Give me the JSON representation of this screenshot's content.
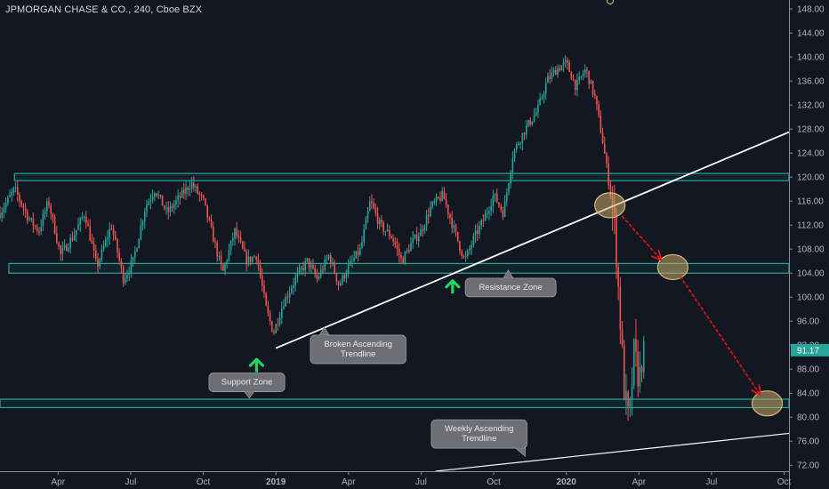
{
  "title": "JPMORGAN CHASE & CO., 240, Cboe BZX",
  "colors": {
    "background": "#131722",
    "up": "#26a69a",
    "down": "#ef5350",
    "zone_stroke": "#26a69a",
    "trendline": "#ffffff",
    "arrow_red": "#e8151b",
    "arrow_green": "#1ed760",
    "ellipse_fill": "#c9a968",
    "callout_fill": "#6d6f75",
    "price_tag": "#26a69a",
    "axis_text": "#b2b5be"
  },
  "chart_data": {
    "type": "candlestick",
    "title": "JPMORGAN CHASE & CO., 240, Cboe BZX",
    "y_axis": {
      "ticks": [
        "148.00",
        "144.00",
        "140.00",
        "136.00",
        "132.00",
        "128.00",
        "124.00",
        "120.00",
        "116.00",
        "112.00",
        "108.00",
        "104.00",
        "100.00",
        "96.00",
        "92.00",
        "88.00",
        "84.00",
        "80.00",
        "76.00",
        "72.00"
      ],
      "range": [
        71,
        149.5
      ]
    },
    "x_axis": {
      "ticks": [
        {
          "label": "Apr",
          "t": 3
        },
        {
          "label": "Jul",
          "t": 6
        },
        {
          "label": "Oct",
          "t": 9
        },
        {
          "label": "2019",
          "t": 12
        },
        {
          "label": "Apr",
          "t": 15
        },
        {
          "label": "Jul",
          "t": 18
        },
        {
          "label": "Oct",
          "t": 21
        },
        {
          "label": "2020",
          "t": 24
        },
        {
          "label": "Apr",
          "t": 27
        },
        {
          "label": "Jul",
          "t": 30
        },
        {
          "label": "Oct",
          "t": 33
        }
      ],
      "range": [
        0.6,
        33.2
      ]
    },
    "last_price": {
      "label": "91.17",
      "value": 91.17
    },
    "price_path": [
      [
        0.6,
        114
      ],
      [
        1.2,
        118
      ],
      [
        1.8,
        113
      ],
      [
        2.2,
        111
      ],
      [
        2.6,
        116
      ],
      [
        3.1,
        107
      ],
      [
        3.6,
        110
      ],
      [
        4.1,
        114
      ],
      [
        4.6,
        105
      ],
      [
        5.2,
        112
      ],
      [
        5.7,
        103
      ],
      [
        6.1,
        106
      ],
      [
        6.6,
        115
      ],
      [
        7.0,
        118
      ],
      [
        7.5,
        114
      ],
      [
        8.1,
        117
      ],
      [
        8.5,
        119
      ],
      [
        9.0,
        116
      ],
      [
        9.4,
        110
      ],
      [
        9.8,
        104
      ],
      [
        10.3,
        111
      ],
      [
        10.8,
        106
      ],
      [
        11.2,
        107
      ],
      [
        11.6,
        98
      ],
      [
        11.9,
        94
      ],
      [
        12.3,
        99
      ],
      [
        12.8,
        103
      ],
      [
        13.3,
        106
      ],
      [
        13.7,
        103
      ],
      [
        14.2,
        107
      ],
      [
        14.6,
        102
      ],
      [
        15.0,
        105
      ],
      [
        15.5,
        108
      ],
      [
        15.9,
        116
      ],
      [
        16.3,
        112
      ],
      [
        16.8,
        110
      ],
      [
        17.2,
        106
      ],
      [
        17.6,
        109
      ],
      [
        18.0,
        111
      ],
      [
        18.4,
        115
      ],
      [
        18.9,
        117
      ],
      [
        19.3,
        112
      ],
      [
        19.8,
        106
      ],
      [
        20.2,
        110
      ],
      [
        20.6,
        113
      ],
      [
        21.0,
        117
      ],
      [
        21.4,
        114
      ],
      [
        21.8,
        124
      ],
      [
        22.3,
        128
      ],
      [
        22.8,
        131
      ],
      [
        23.2,
        136
      ],
      [
        23.6,
        138
      ],
      [
        24.0,
        139
      ],
      [
        24.4,
        135
      ],
      [
        24.8,
        138
      ],
      [
        25.2,
        133
      ],
      [
        25.5,
        126
      ],
      [
        25.8,
        118
      ],
      [
        26.0,
        112
      ],
      [
        26.2,
        98
      ],
      [
        26.4,
        84
      ],
      [
        26.6,
        79
      ],
      [
        26.8,
        91
      ],
      [
        27.0,
        86
      ],
      [
        27.2,
        92
      ]
    ],
    "zones": [
      {
        "name": "upper-zone",
        "low": 119.4,
        "high": 120.6,
        "t_start": 1.2,
        "t_end": 33.2
      },
      {
        "name": "resistance-zone",
        "low": 104.0,
        "high": 105.6,
        "t_start": 0.6,
        "t_end": 33.2
      },
      {
        "name": "support-zone",
        "low": 81.6,
        "high": 83.0,
        "t_start": 0.0,
        "t_end": 33.2
      }
    ],
    "trendlines": [
      {
        "name": "broken-ascending-trendline",
        "t1": 12.0,
        "v1": 91.5,
        "t2": 33.2,
        "v2": 127.5
      },
      {
        "name": "weekly-ascending-trendline",
        "t1": 18.6,
        "v1": 71.0,
        "t2": 33.2,
        "v2": 77.3
      }
    ],
    "ellipses": [
      {
        "name": "ellipse-break",
        "t": 25.8,
        "v": 115.3
      },
      {
        "name": "ellipse-retest",
        "t": 28.4,
        "v": 105.0
      },
      {
        "name": "ellipse-target",
        "t": 32.3,
        "v": 82.3
      }
    ],
    "red_arrows": [
      {
        "t1": 26.3,
        "v1": 113.5,
        "t2": 27.9,
        "v2": 106.3
      },
      {
        "t1": 28.7,
        "v1": 103.5,
        "t2": 32.0,
        "v2": 83.8
      }
    ],
    "green_arrows": [
      {
        "t": 11.2,
        "v": 88.9
      },
      {
        "t": 19.3,
        "v": 102.0
      }
    ],
    "callouts": [
      {
        "name": "resistance-zone-callout",
        "lines": [
          "Resistance Zone"
        ],
        "t": 21.7,
        "v": 101.6,
        "pointer_t": 21.6,
        "pointer_v": 104.5
      },
      {
        "name": "broken-trendline-callout",
        "lines": [
          "Broken Ascending",
          "Trendline"
        ],
        "t": 15.4,
        "v": 91.3,
        "pointer_t": 14.0,
        "pointer_v": 95.0
      },
      {
        "name": "support-zone-callout",
        "lines": [
          "Support Zone"
        ],
        "t": 10.8,
        "v": 85.8,
        "pointer_t": 10.9,
        "pointer_v": 83.2
      },
      {
        "name": "weekly-trendline-callout",
        "lines": [
          "Weekly Ascending",
          "Trendline"
        ],
        "t": 20.4,
        "v": 77.2,
        "pointer_t": 22.3,
        "pointer_v": 73.5
      }
    ]
  }
}
